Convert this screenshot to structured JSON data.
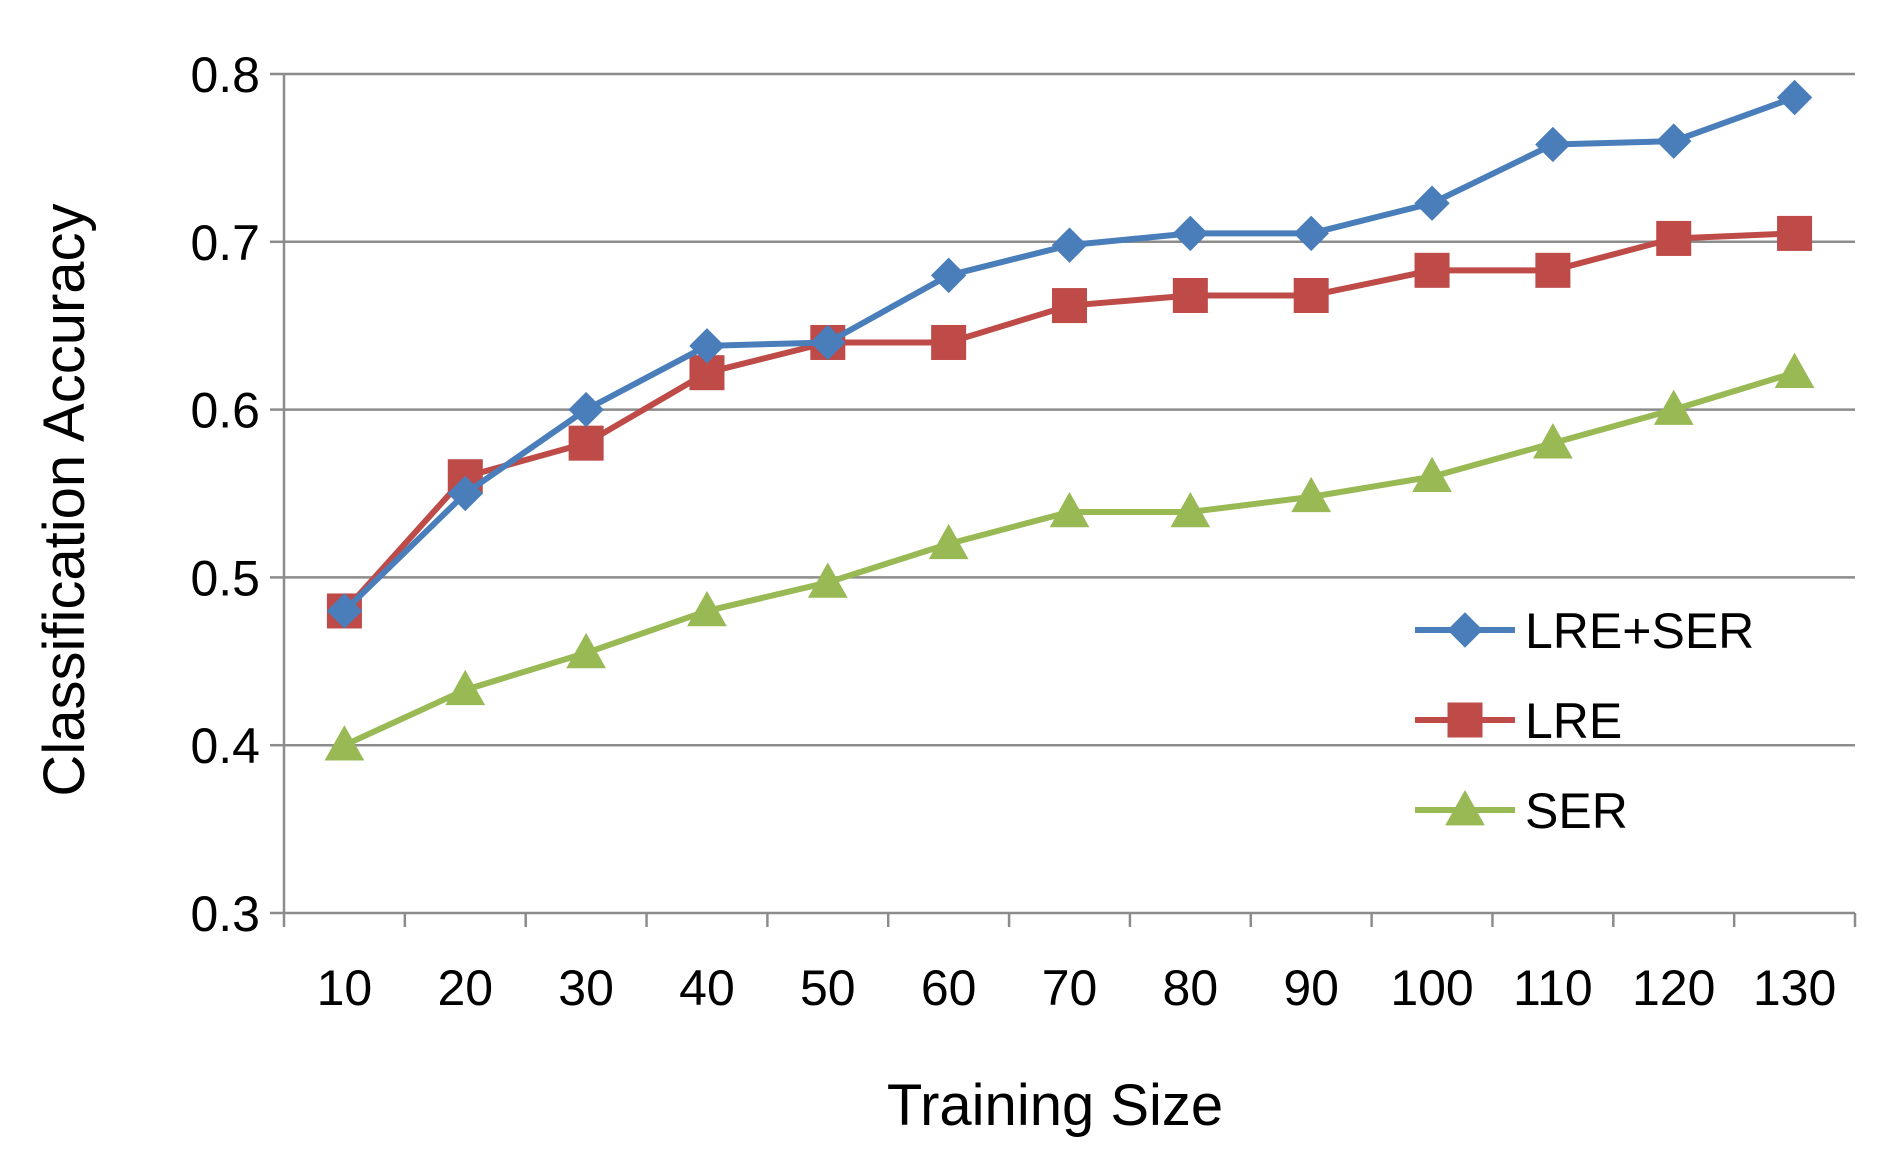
{
  "chart_data": {
    "type": "line",
    "xlabel": "Training Size",
    "ylabel": "Classification Accuracy",
    "categories": [
      "10",
      "20",
      "30",
      "40",
      "50",
      "60",
      "70",
      "80",
      "90",
      "100",
      "110",
      "120",
      "130"
    ],
    "ylim": [
      0.3,
      0.8
    ],
    "yticks": [
      "0.3",
      "0.4",
      "0.5",
      "0.6",
      "0.7",
      "0.8"
    ],
    "grid": "horizontal",
    "legend_position": "right",
    "series": [
      {
        "name": "LRE+SER",
        "color": "#4a7ebb",
        "marker": "diamond",
        "values": [
          0.48,
          0.55,
          0.6,
          0.638,
          0.64,
          0.68,
          0.698,
          0.705,
          0.705,
          0.723,
          0.758,
          0.76,
          0.786
        ]
      },
      {
        "name": "LRE",
        "color": "#be4b48",
        "marker": "square",
        "values": [
          0.48,
          0.56,
          0.58,
          0.622,
          0.64,
          0.64,
          0.662,
          0.668,
          0.668,
          0.683,
          0.683,
          0.702,
          0.705
        ]
      },
      {
        "name": "SER",
        "color": "#98b954",
        "marker": "triangle",
        "values": [
          0.4,
          0.433,
          0.455,
          0.48,
          0.497,
          0.52,
          0.539,
          0.539,
          0.548,
          0.56,
          0.58,
          0.6,
          0.622
        ]
      }
    ]
  }
}
